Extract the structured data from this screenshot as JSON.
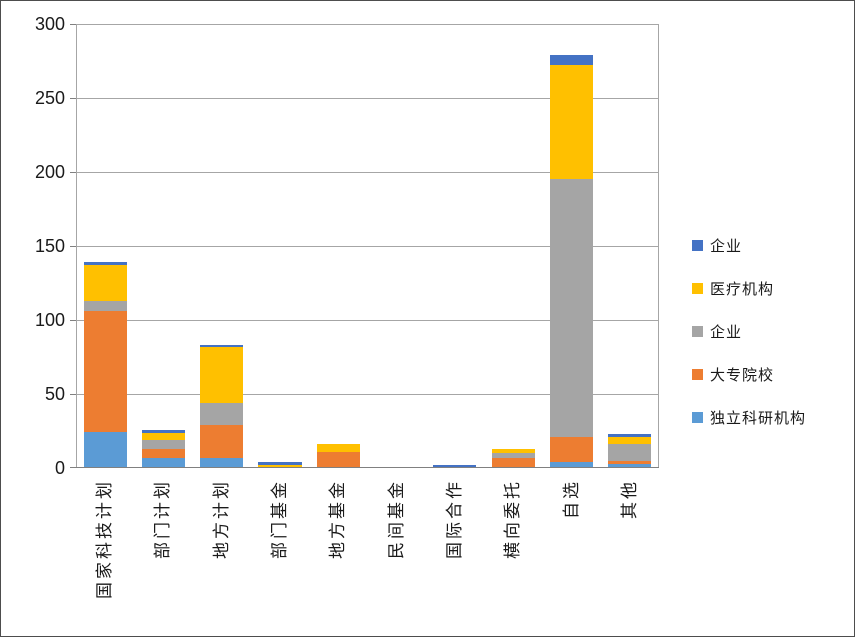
{
  "chart_data": {
    "type": "bar",
    "stacked": true,
    "title": "",
    "xlabel": "",
    "ylabel": "",
    "categories": [
      "国家科技计划",
      "部门计划",
      "地方计划",
      "部门基金",
      "地方基金",
      "民间基金",
      "国际合作",
      "横向委托",
      "自选",
      "其他"
    ],
    "series": [
      {
        "name": "独立科研机构",
        "color": "#5B9BD5",
        "values": [
          24,
          7,
          7,
          0,
          0,
          0,
          0,
          0,
          4,
          3
        ]
      },
      {
        "name": "大专院校",
        "color": "#ED7D31",
        "values": [
          82,
          6,
          22,
          0,
          11,
          0,
          0,
          7,
          17,
          2
        ]
      },
      {
        "name": "企业",
        "color": "#A5A5A5",
        "values": [
          7,
          6,
          15,
          0,
          0,
          0,
          0,
          3,
          174,
          11
        ]
      },
      {
        "name": "医疗机构",
        "color": "#FFC000",
        "values": [
          24,
          5,
          38,
          2,
          5,
          0,
          0,
          3,
          77,
          5
        ]
      },
      {
        "name": "企业",
        "color": "#4472C4",
        "values": [
          2,
          2,
          1,
          2,
          0,
          0,
          2,
          0,
          7,
          2
        ]
      }
    ],
    "legend": {
      "position": "right",
      "items": [
        {
          "label": "企业",
          "color": "#4472C4"
        },
        {
          "label": "医疗机构",
          "color": "#FFC000"
        },
        {
          "label": "企业",
          "color": "#A5A5A5"
        },
        {
          "label": "大专院校",
          "color": "#ED7D31"
        },
        {
          "label": "独立科研机构",
          "color": "#5B9BD5"
        }
      ]
    },
    "ylim": [
      0,
      300
    ],
    "ytick_step": 50,
    "ytick_labels": [
      "0",
      "50",
      "100",
      "150",
      "200",
      "250",
      "300"
    ],
    "grid": true
  },
  "colors": {
    "gridline": "#a6a6a6",
    "axis": "#808080",
    "frame_border": "#4d4d4d",
    "background": "#ffffff"
  }
}
